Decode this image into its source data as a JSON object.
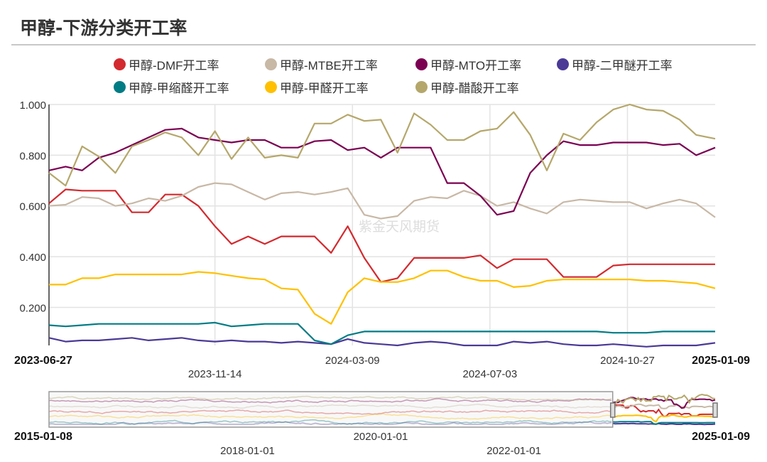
{
  "header": {
    "title": "甲醇-下游分类开工率"
  },
  "watermark": "紫金天风期货",
  "legend": [
    {
      "label": "甲醇-DMF开工率",
      "color": "#d22a2f"
    },
    {
      "label": "甲醇-MTBE开工率",
      "color": "#c8b8a6"
    },
    {
      "label": "甲醇-MTO开工率",
      "color": "#7b0052"
    },
    {
      "label": "甲醇-二甲醚开工率",
      "color": "#4b3a96"
    },
    {
      "label": "甲醇-甲缩醛开工率",
      "color": "#007c85"
    },
    {
      "label": "甲醇-甲醛开工率",
      "color": "#ffc000"
    },
    {
      "label": "甲醇-醋酸开工率",
      "color": "#b5a76b"
    }
  ],
  "chart_data": {
    "type": "line",
    "title": "甲醇-下游分类开工率",
    "ylim": [
      0.05,
      1.0
    ],
    "yticks": [
      "1.000",
      "0.800",
      "0.600",
      "0.400",
      "0.200"
    ],
    "ytick_values": [
      1.0,
      0.8,
      0.6,
      0.4,
      0.2
    ],
    "xlim": [
      "2023-06-27",
      "2025-01-09"
    ],
    "xticks": [
      "2023-06-27",
      "2023-11-14",
      "2024-03-09",
      "2024-07-03",
      "2024-10-27",
      "2025-01-09"
    ],
    "grid": true,
    "legend_position": "top",
    "x": [
      "2023-06-27",
      "2023-07-11",
      "2023-07-25",
      "2023-08-08",
      "2023-08-22",
      "2023-09-05",
      "2023-09-19",
      "2023-10-03",
      "2023-10-17",
      "2023-10-31",
      "2023-11-14",
      "2023-11-28",
      "2023-12-12",
      "2023-12-26",
      "2024-01-09",
      "2024-01-23",
      "2024-02-06",
      "2024-02-20",
      "2024-03-05",
      "2024-03-19",
      "2024-04-02",
      "2024-04-16",
      "2024-04-30",
      "2024-05-14",
      "2024-05-28",
      "2024-06-11",
      "2024-06-25",
      "2024-07-09",
      "2024-07-23",
      "2024-08-06",
      "2024-08-20",
      "2024-09-03",
      "2024-09-17",
      "2024-10-01",
      "2024-10-15",
      "2024-10-29",
      "2024-11-12",
      "2024-11-26",
      "2024-12-10",
      "2024-12-24",
      "2025-01-09"
    ],
    "series": [
      {
        "name": "甲醇-DMF开工率",
        "color": "#d22a2f",
        "values": [
          0.61,
          0.665,
          0.66,
          0.66,
          0.66,
          0.575,
          0.575,
          0.645,
          0.645,
          0.6,
          0.52,
          0.45,
          0.48,
          0.45,
          0.48,
          0.48,
          0.48,
          0.415,
          0.52,
          0.395,
          0.3,
          0.315,
          0.395,
          0.395,
          0.395,
          0.395,
          0.405,
          0.355,
          0.39,
          0.39,
          0.39,
          0.32,
          0.32,
          0.32,
          0.365,
          0.37,
          0.37,
          0.37,
          0.37,
          0.37,
          0.37
        ]
      },
      {
        "name": "甲醇-MTBE开工率",
        "color": "#c8b8a6",
        "values": [
          0.6,
          0.605,
          0.635,
          0.63,
          0.6,
          0.61,
          0.63,
          0.62,
          0.64,
          0.675,
          0.69,
          0.685,
          0.655,
          0.625,
          0.65,
          0.655,
          0.645,
          0.655,
          0.67,
          0.565,
          0.55,
          0.56,
          0.62,
          0.635,
          0.63,
          0.66,
          0.64,
          0.6,
          0.615,
          0.59,
          0.57,
          0.615,
          0.625,
          0.62,
          0.615,
          0.615,
          0.59,
          0.61,
          0.625,
          0.61,
          0.555
        ]
      },
      {
        "name": "甲醇-MTO开工率",
        "color": "#7b0052",
        "values": [
          0.74,
          0.755,
          0.74,
          0.79,
          0.81,
          0.84,
          0.87,
          0.9,
          0.905,
          0.87,
          0.86,
          0.85,
          0.86,
          0.86,
          0.83,
          0.83,
          0.855,
          0.86,
          0.82,
          0.83,
          0.79,
          0.83,
          0.83,
          0.83,
          0.69,
          0.69,
          0.64,
          0.565,
          0.58,
          0.73,
          0.8,
          0.855,
          0.84,
          0.84,
          0.85,
          0.85,
          0.85,
          0.84,
          0.845,
          0.8,
          0.83
        ]
      },
      {
        "name": "甲醇-二甲醚开工率",
        "color": "#4b3a96",
        "values": [
          0.08,
          0.065,
          0.07,
          0.07,
          0.075,
          0.08,
          0.07,
          0.075,
          0.08,
          0.07,
          0.065,
          0.07,
          0.065,
          0.065,
          0.06,
          0.065,
          0.06,
          0.055,
          0.075,
          0.06,
          0.055,
          0.05,
          0.06,
          0.065,
          0.06,
          0.05,
          0.05,
          0.05,
          0.065,
          0.06,
          0.065,
          0.055,
          0.05,
          0.05,
          0.055,
          0.05,
          0.045,
          0.05,
          0.05,
          0.05,
          0.06
        ]
      },
      {
        "name": "甲醇-甲缩醛开工率",
        "color": "#007c85",
        "values": [
          0.13,
          0.125,
          0.13,
          0.135,
          0.135,
          0.135,
          0.135,
          0.135,
          0.135,
          0.135,
          0.14,
          0.125,
          0.13,
          0.135,
          0.135,
          0.135,
          0.07,
          0.055,
          0.09,
          0.105,
          0.105,
          0.105,
          0.105,
          0.105,
          0.105,
          0.105,
          0.105,
          0.105,
          0.105,
          0.105,
          0.105,
          0.105,
          0.105,
          0.105,
          0.1,
          0.1,
          0.1,
          0.105,
          0.105,
          0.105,
          0.105
        ]
      },
      {
        "name": "甲醇-甲醛开工率",
        "color": "#ffc000",
        "values": [
          0.29,
          0.29,
          0.315,
          0.315,
          0.33,
          0.33,
          0.33,
          0.33,
          0.33,
          0.34,
          0.335,
          0.325,
          0.315,
          0.31,
          0.275,
          0.27,
          0.175,
          0.135,
          0.26,
          0.315,
          0.3,
          0.3,
          0.315,
          0.345,
          0.345,
          0.32,
          0.305,
          0.305,
          0.28,
          0.285,
          0.305,
          0.31,
          0.31,
          0.31,
          0.31,
          0.31,
          0.305,
          0.305,
          0.3,
          0.295,
          0.275
        ]
      },
      {
        "name": "甲醇-醋酸开工率",
        "color": "#b5a76b",
        "values": [
          0.73,
          0.68,
          0.835,
          0.795,
          0.73,
          0.835,
          0.86,
          0.89,
          0.87,
          0.8,
          0.895,
          0.785,
          0.87,
          0.79,
          0.8,
          0.79,
          0.925,
          0.925,
          0.96,
          0.935,
          0.94,
          0.81,
          0.965,
          0.92,
          0.86,
          0.86,
          0.895,
          0.905,
          0.97,
          0.88,
          0.74,
          0.885,
          0.86,
          0.93,
          0.98,
          1.0,
          0.98,
          0.975,
          0.94,
          0.88,
          0.865
        ]
      }
    ]
  },
  "navigator": {
    "range": [
      "2015-01-08",
      "2025-01-09"
    ],
    "ticks": [
      "2018-01-01",
      "2020-01-01",
      "2022-01-01"
    ],
    "selected": [
      "2023-06-27",
      "2025-01-09"
    ]
  }
}
